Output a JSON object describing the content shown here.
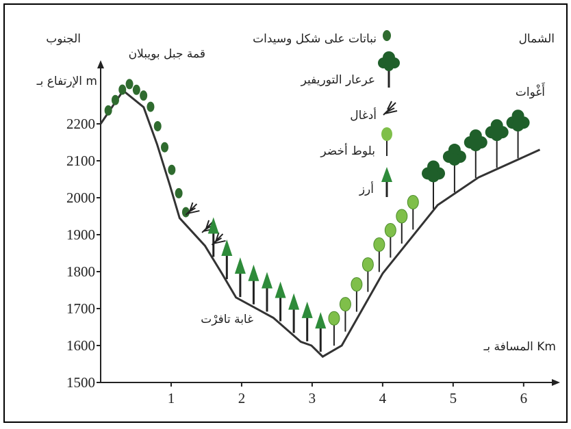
{
  "chart_data": {
    "type": "line",
    "south_label": "الجنوب",
    "north_label": "الشمال",
    "ylabel": "الإرتفاع بـ m",
    "xlabel": "المسافة بـ Km",
    "peak_label": "قمة جبل بويبلان",
    "forest_label": "غابة تافرْت",
    "north_place_label": "أَغْوات",
    "legend": [
      "نباتات على شكل وسيدات",
      "عرعار التوريفير",
      "أدغال",
      "بلوط أخضر",
      "أرز"
    ],
    "x": [
      0,
      0.32,
      0.61,
      0.8,
      0.98,
      1.12,
      1.48,
      1.72,
      1.92,
      2.45,
      2.84,
      2.99,
      3.15,
      3.42,
      4.0,
      4.78,
      5.36,
      6.23
    ],
    "series": [
      {
        "color": "#333333",
        "values": [
          2200,
          2290,
          2245,
          2145,
          2035,
          1945,
          1870,
          1795,
          1730,
          1675,
          1610,
          1600,
          1570,
          1600,
          1795,
          1980,
          2055,
          2130
        ]
      }
    ],
    "xlim": [
      0,
      6.4
    ],
    "ylim": [
      1500,
      2350
    ],
    "xticks": [
      1,
      2,
      3,
      4,
      5,
      6
    ],
    "yticks": [
      1500,
      1600,
      1700,
      1800,
      1900,
      2000,
      2100,
      2200
    ]
  }
}
